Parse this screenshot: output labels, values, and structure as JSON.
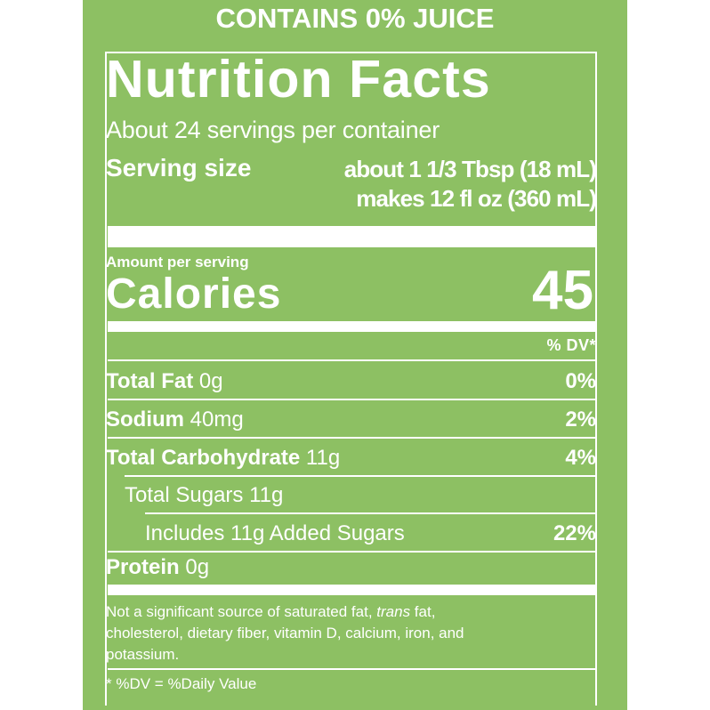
{
  "banner": "CONTAINS 0% JUICE",
  "title": "Nutrition Facts",
  "servings_per_container": "About 24 servings per container",
  "serving_size": {
    "label": "Serving size",
    "amount_1": "about 1 1/3 Tbsp (18 mL)",
    "amount_2": "makes 12 fl oz (360 mL)"
  },
  "amount_per_serving": "Amount per serving",
  "calories": {
    "label": "Calories",
    "value": "45"
  },
  "dv_header": "% DV*",
  "nutrients": [
    {
      "name": "Total Fat",
      "amount": "0g",
      "dv": "0%"
    },
    {
      "name": "Sodium",
      "amount": "40mg",
      "dv": "2%"
    },
    {
      "name": "Total Carbohydrate",
      "amount": "11g",
      "dv": "4%"
    },
    {
      "name": "Total Sugars 11g",
      "amount": "",
      "dv": ""
    },
    {
      "name": "Includes 11g Added Sugars",
      "amount": "",
      "dv": "22%"
    },
    {
      "name": "Protein",
      "amount": "0g",
      "dv": ""
    }
  ],
  "footnote": {
    "line1_prefix": "Not a significant source of saturated fat, ",
    "line1_italic": "trans",
    "line1_suffix": " fat,",
    "line2": "cholesterol, dietary fiber, vitamin D, calcium, iron, and",
    "line3": "potassium.",
    "dv_note": "* %DV = %Daily Value"
  },
  "colors": {
    "background": "#8dc063",
    "text": "#ffffff"
  }
}
